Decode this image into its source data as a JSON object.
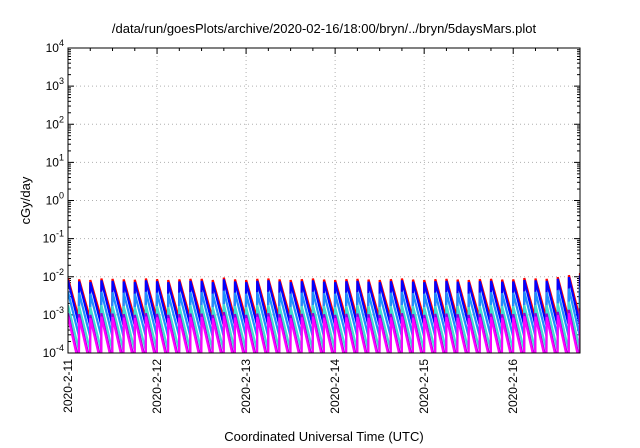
{
  "chart_data": {
    "type": "line",
    "title": "/data/run/goesPlots/archive/2020-02-16/18:00/bryn/../bryn/5daysMars.plot",
    "xlabel": "Coordinated Universal Time (UTC)",
    "ylabel": "cGy/day",
    "yscale": "log",
    "ylim": [
      0.0001,
      10000
    ],
    "y_ticks": [
      {
        "base": "10",
        "exp": "-4",
        "value": 0.0001
      },
      {
        "base": "10",
        "exp": "-3",
        "value": 0.001
      },
      {
        "base": "10",
        "exp": "-2",
        "value": 0.01
      },
      {
        "base": "10",
        "exp": "-1",
        "value": 0.1
      },
      {
        "base": "10",
        "exp": "0",
        "value": 1
      },
      {
        "base": "10",
        "exp": "1",
        "value": 10
      },
      {
        "base": "10",
        "exp": "2",
        "value": 100
      },
      {
        "base": "10",
        "exp": "3",
        "value": 1000
      },
      {
        "base": "10",
        "exp": "4",
        "value": 10000
      }
    ],
    "xlim": [
      "2020-02-11T00:00",
      "2020-02-16T18:00"
    ],
    "x_ticks": [
      "2020-2-11",
      "2020-2-12",
      "2020-2-13",
      "2020-2-14",
      "2020-2-15",
      "2020-2-16"
    ],
    "grid": true,
    "legend": "none",
    "sawtooth_period_hours": 3,
    "series": [
      {
        "color": "#ff0000",
        "peaks": [
          0.009,
          0.0085,
          0.0082,
          0.009,
          0.0088,
          0.0085,
          0.0083,
          0.009,
          0.0086,
          0.0082,
          0.0085,
          0.0088,
          0.0088,
          0.0082,
          0.0095,
          0.0085,
          0.0082,
          0.0088,
          0.009,
          0.0085,
          0.0082,
          0.0086,
          0.009,
          0.0084,
          0.0082,
          0.0086,
          0.0088,
          0.0084,
          0.0082,
          0.0086,
          0.009,
          0.0084,
          0.0082,
          0.0086,
          0.0088,
          0.0084,
          0.0082,
          0.0086,
          0.0088,
          0.0084,
          0.0085,
          0.0092,
          0.009,
          0.0088,
          0.0098,
          0.011,
          0.0125,
          0.0145,
          0.013,
          0.0115,
          0.011,
          0.0125,
          0.012,
          0.011,
          0.0098,
          0.009
        ],
        "min": 0.0008
      },
      {
        "color": "#0000ff",
        "peaks": [
          0.008,
          0.0075,
          0.0072,
          0.008,
          0.0078,
          0.0075,
          0.0073,
          0.008,
          0.0076,
          0.0072,
          0.0075,
          0.0078,
          0.0078,
          0.0072,
          0.0085,
          0.0075,
          0.0072,
          0.0078,
          0.008,
          0.0075,
          0.0072,
          0.0076,
          0.008,
          0.0074,
          0.0072,
          0.0076,
          0.0078,
          0.0074,
          0.0072,
          0.0076,
          0.008,
          0.0074,
          0.0072,
          0.0076,
          0.0078,
          0.0074,
          0.0072,
          0.0076,
          0.0078,
          0.0074,
          0.0075,
          0.0082,
          0.008,
          0.0078,
          0.0088,
          0.0098,
          0.011,
          0.0125,
          0.0115,
          0.0102,
          0.0098,
          0.011,
          0.0105,
          0.0098,
          0.0088,
          0.008
        ],
        "min": 0.00055
      },
      {
        "color": "#1e90ff",
        "peaks": [
          0.004,
          0.0038,
          0.0036,
          0.004,
          0.0039,
          0.0038,
          0.0036,
          0.004,
          0.0038,
          0.0036,
          0.0038,
          0.0039,
          0.0039,
          0.0036,
          0.0043,
          0.0038,
          0.0036,
          0.0039,
          0.004,
          0.0038,
          0.0036,
          0.0038,
          0.004,
          0.0037,
          0.0036,
          0.0038,
          0.0039,
          0.0037,
          0.0036,
          0.0038,
          0.004,
          0.0037,
          0.0036,
          0.0038,
          0.0039,
          0.0037,
          0.0036,
          0.0038,
          0.0039,
          0.0037,
          0.0038,
          0.0041,
          0.004,
          0.0039,
          0.0044,
          0.0049,
          0.0055,
          0.0062,
          0.0057,
          0.0051,
          0.0049,
          0.0055,
          0.0052,
          0.0049,
          0.0044,
          0.004
        ],
        "min": 0.00028
      },
      {
        "color": "#40e0d0",
        "peaks": [
          0.0018,
          0.0017,
          0.0016,
          0.0018,
          0.0017,
          0.0017,
          0.0016,
          0.0018,
          0.0017,
          0.0016,
          0.0017,
          0.0018,
          0.0018,
          0.0016,
          0.0019,
          0.0017,
          0.0016,
          0.0018,
          0.0018,
          0.0017,
          0.0016,
          0.0017,
          0.0018,
          0.0017,
          0.0016,
          0.0017,
          0.0018,
          0.0017,
          0.0016,
          0.0017,
          0.0018,
          0.0017,
          0.0016,
          0.0017,
          0.0018,
          0.0017,
          0.0016,
          0.0017,
          0.0018,
          0.0017,
          0.0017,
          0.0018,
          0.0018,
          0.0018,
          0.002,
          0.0022,
          0.0024,
          0.0027,
          0.0025,
          0.0023,
          0.0022,
          0.0024,
          0.0023,
          0.0022,
          0.002,
          0.0018
        ],
        "min": 0.00012
      },
      {
        "color": "#9400d3",
        "peaks": [
          0.0011,
          0.00105,
          0.001,
          0.0011,
          0.00108,
          0.00105,
          0.001,
          0.0011,
          0.00106,
          0.001,
          0.00105,
          0.00108,
          0.00108,
          0.001,
          0.00118,
          0.00105,
          0.001,
          0.00108,
          0.0011,
          0.00105,
          0.001,
          0.00106,
          0.0011,
          0.00104,
          0.001,
          0.00106,
          0.00108,
          0.00104,
          0.001,
          0.00106,
          0.0011,
          0.00104,
          0.001,
          0.00106,
          0.00108,
          0.00104,
          0.001,
          0.00106,
          0.00108,
          0.00104,
          0.00105,
          0.00112,
          0.0011,
          0.00108,
          0.0012,
          0.00135,
          0.0015,
          0.0017,
          0.0016,
          0.0014,
          0.00135,
          0.0015,
          0.00145,
          0.00135,
          0.0012,
          0.0011
        ],
        "min": 6e-05
      },
      {
        "color": "#ff00ff",
        "peaks": [
          0.0009,
          0.00085,
          0.00082,
          0.0009,
          0.00088,
          0.00085,
          0.00083,
          0.0009,
          0.00086,
          0.00082,
          0.00085,
          0.00088,
          0.00088,
          0.00082,
          0.00095,
          0.00085,
          0.00082,
          0.00088,
          0.0009,
          0.00085,
          0.00082,
          0.00086,
          0.0009,
          0.00084,
          0.00082,
          0.00086,
          0.00088,
          0.00084,
          0.00082,
          0.00086,
          0.0009,
          0.00084,
          0.00082,
          0.00086,
          0.00088,
          0.00084,
          0.00082,
          0.00086,
          0.00088,
          0.00084,
          0.00085,
          0.00092,
          0.0009,
          0.00088,
          0.00098,
          0.0011,
          0.00125,
          0.0014,
          0.0013,
          0.00115,
          0.0011,
          0.00125,
          0.0012,
          0.0011,
          0.00098,
          0.0009
        ],
        "min": 5e-05
      }
    ]
  }
}
